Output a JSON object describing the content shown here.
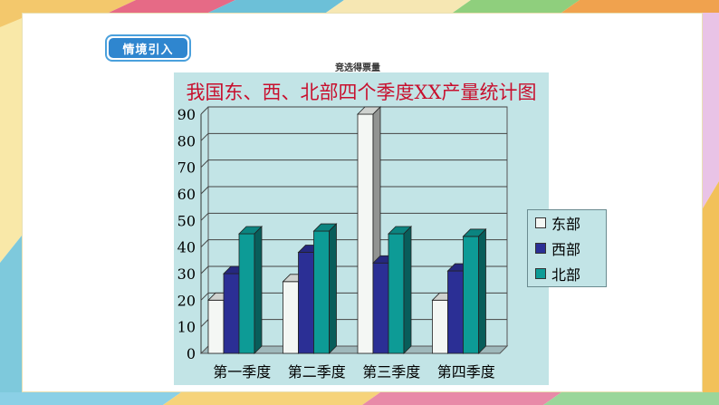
{
  "header": {
    "tag_label": "情境引入"
  },
  "chart_data": {
    "type": "bar",
    "mini_title": "竞选得票量",
    "title": "我国东、西、北部四个季度XX产量统计图",
    "categories": [
      "第一季度",
      "第二季度",
      "第三季度",
      "第四季度"
    ],
    "series": [
      {
        "name": "东部",
        "values": [
          20,
          27,
          90,
          20
        ],
        "color": "#f4f7f4"
      },
      {
        "name": "西部",
        "values": [
          30,
          38,
          34,
          31
        ],
        "color": "#2b2f95"
      },
      {
        "name": "北部",
        "values": [
          45,
          46,
          45,
          44
        ],
        "color": "#0d9b96"
      }
    ],
    "y_ticks": [
      "0",
      "10",
      "20",
      "30",
      "40",
      "50",
      "60",
      "70",
      "80",
      "90"
    ],
    "ylim": [
      0,
      90
    ],
    "grid": true,
    "legend_placement": "right",
    "background_color": "#c2e4e6",
    "title_color": "#c8102e"
  }
}
